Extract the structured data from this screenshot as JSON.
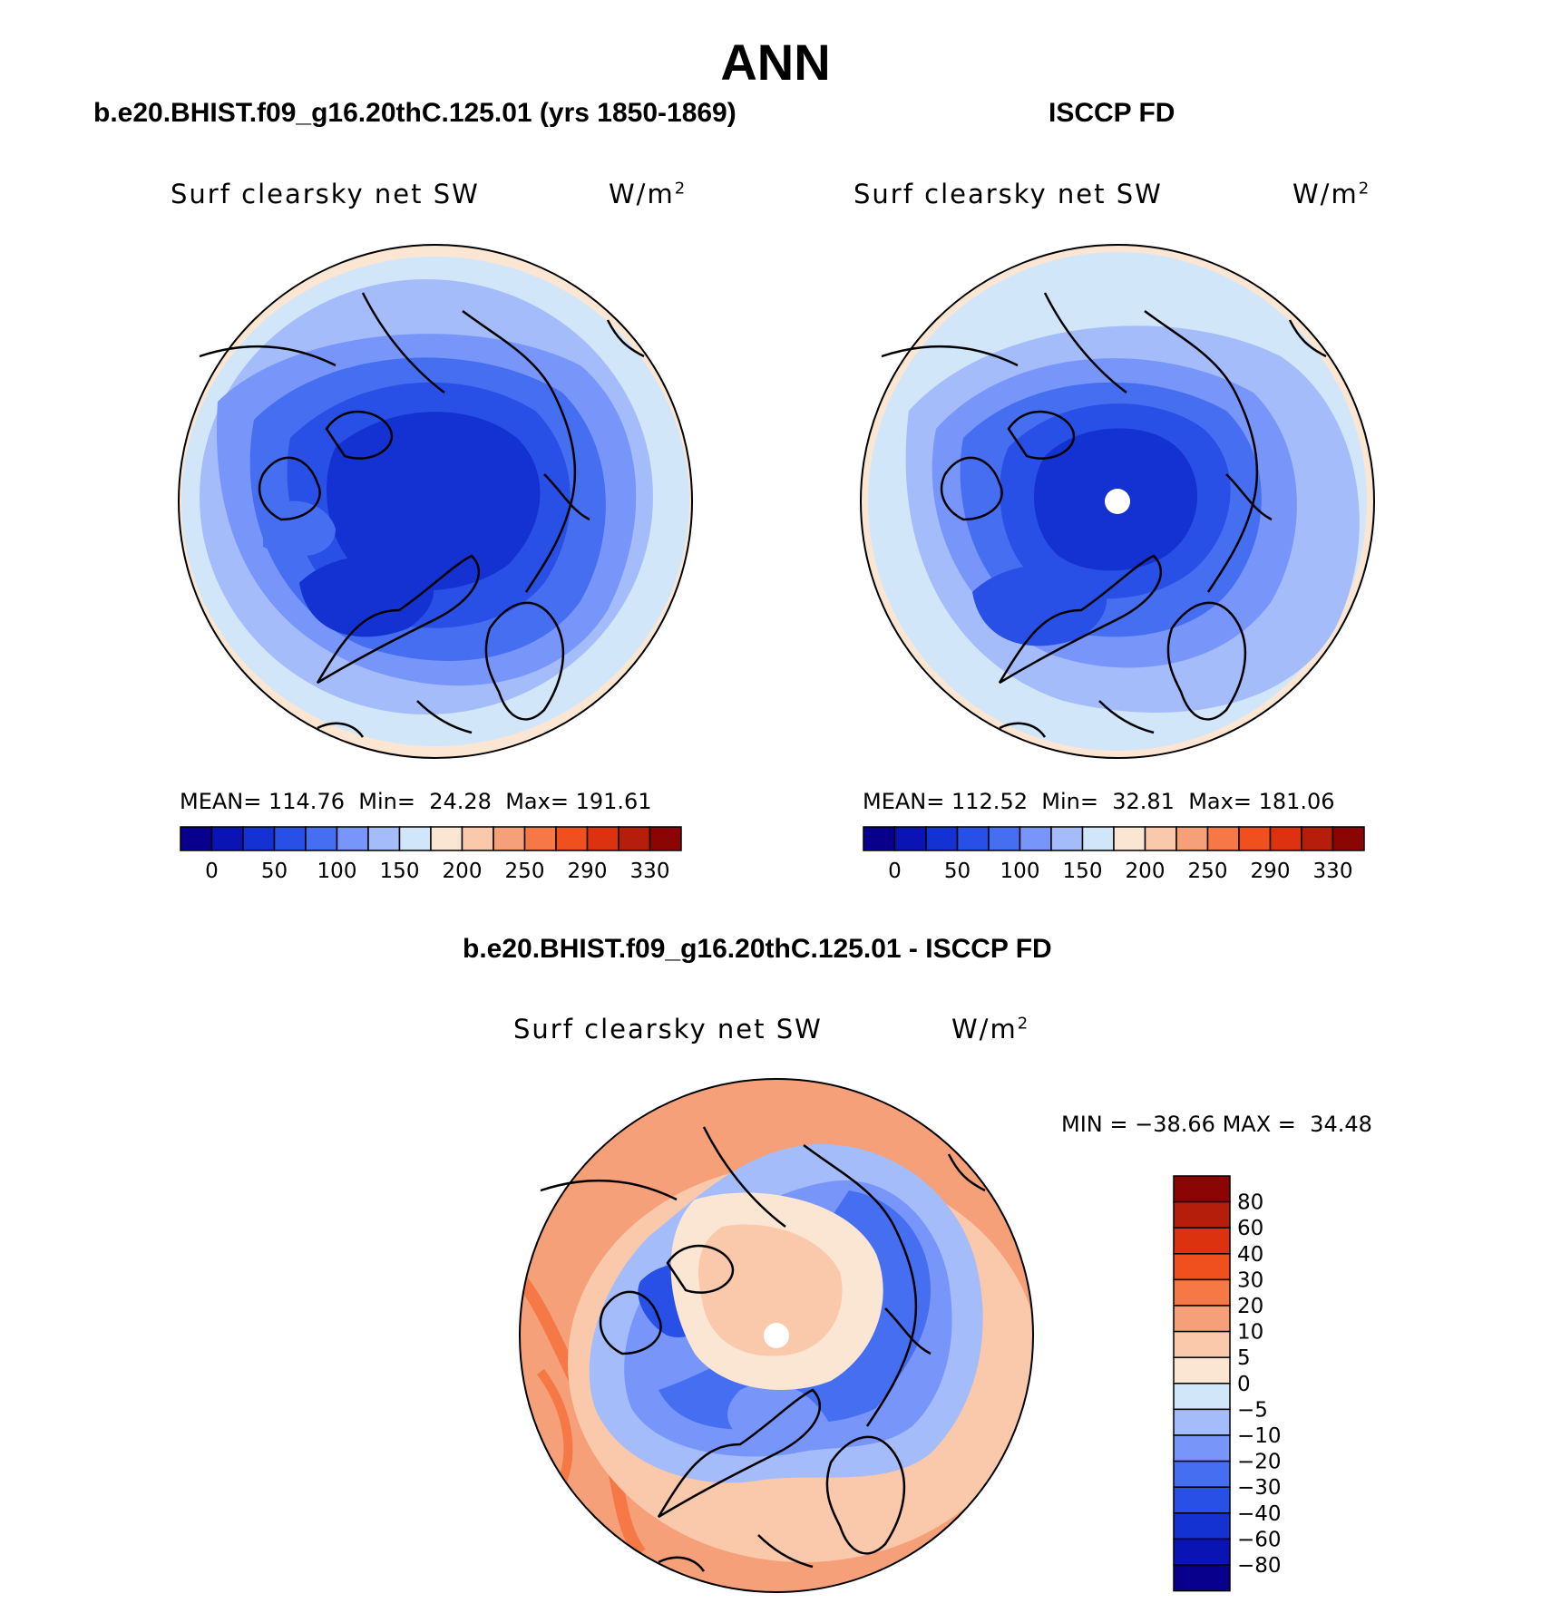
{
  "title": "ANN",
  "panels": [
    {
      "heading": "b.e20.BHIST.f09_g16.20thC.125.01 (yrs 1850-1869)",
      "label": "Surf clearsky net SW",
      "unit_base": "W/m",
      "unit_exp": "2",
      "stats": {
        "mean_label": "MEAN=",
        "mean": "114.76",
        "min_label": "Min=",
        "min": "24.28",
        "max_label": "Max=",
        "max": "191.61"
      }
    },
    {
      "heading": "ISCCP FD",
      "label": "Surf clearsky net SW",
      "unit_base": "W/m",
      "unit_exp": "2",
      "stats": {
        "mean_label": "MEAN=",
        "mean": "112.52",
        "min_label": "Min=",
        "min": "32.81",
        "max_label": "Max=",
        "max": "181.06"
      }
    }
  ],
  "diff_panel": {
    "heading": "b.e20.BHIST.f09_g16.20thC.125.01 - ISCCP FD",
    "label": "Surf clearsky net SW",
    "unit_base": "W/m",
    "unit_exp": "2",
    "stats": {
      "min_label": "MIN =",
      "min": "−38.66",
      "max_label": "MAX =",
      "max": "34.48"
    }
  },
  "chart_data": {
    "type": "heatmap",
    "projection": "north polar stereographic",
    "field_colorbar": {
      "labels": [
        "0",
        "50",
        "100",
        "150",
        "200",
        "250",
        "290",
        "330"
      ],
      "colors": [
        "#08008c",
        "#0a14b4",
        "#1432d2",
        "#2850e6",
        "#466ef0",
        "#7896fa",
        "#a5bcfa",
        "#d2e6fa",
        "#fae6d2",
        "#fac8aa",
        "#f5a078",
        "#f57846",
        "#f0501e",
        "#dc320f",
        "#b41e0a",
        "#8c0505"
      ]
    },
    "diff_colorbar": {
      "labels": [
        "80",
        "60",
        "40",
        "30",
        "20",
        "10",
        "5",
        "0",
        "−5",
        "−10",
        "−20",
        "−30",
        "−40",
        "−60",
        "−80"
      ],
      "colors": [
        "#8c0505",
        "#b41e0a",
        "#dc320f",
        "#f0501e",
        "#f57846",
        "#f5a078",
        "#fac8aa",
        "#fae6d2",
        "#d2e6fa",
        "#a5bcfa",
        "#7896fa",
        "#466ef0",
        "#2850e6",
        "#1432d2",
        "#0a14b4",
        "#08008c"
      ]
    },
    "annual_mean": [
      114.76,
      112.52
    ],
    "min": [
      24.28,
      32.81
    ],
    "max": [
      191.61,
      181.06
    ],
    "diff_min": -38.66,
    "diff_max": 34.48
  }
}
